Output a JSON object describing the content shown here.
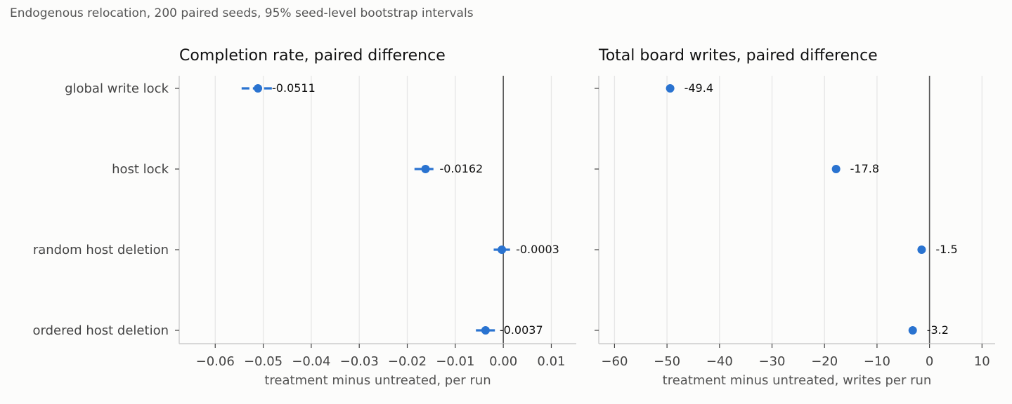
{
  "caption": "Endogenous relocation, 200 paired seeds, 95% seed-level bootstrap intervals",
  "colors": {
    "marker": "#2a73d0",
    "grid": "#e6e6e6",
    "zero_line": "#555555",
    "axis": "#cccccc",
    "text": "#444444"
  },
  "chart_data": [
    {
      "type": "scatter",
      "title": "Completion rate, paired difference",
      "xlabel": "treatment minus untreated, per run",
      "ylabel": "",
      "categories": [
        "global write lock",
        "host lock",
        "random host deletion",
        "ordered host deletion"
      ],
      "values": [
        -0.0511,
        -0.0162,
        -0.0003,
        -0.0037
      ],
      "value_labels": [
        "-0.0511",
        "-0.0162",
        "-0.0003",
        "-0.0037"
      ],
      "ci_low": [
        -0.0545,
        -0.0185,
        -0.002,
        -0.0057
      ],
      "ci_high": [
        -0.0477,
        -0.0139,
        0.0014,
        -0.0017
      ],
      "xlim": [
        -0.0675,
        0.0152
      ],
      "xticks": [
        -0.06,
        -0.05,
        -0.04,
        -0.03,
        -0.02,
        -0.01,
        0.0,
        0.01
      ],
      "xtick_labels": [
        "−0.06",
        "−0.05",
        "−0.04",
        "−0.03",
        "−0.02",
        "−0.01",
        "0.00",
        "0.01"
      ],
      "zero_line": 0,
      "grid": "vertical"
    },
    {
      "type": "scatter",
      "title": "Total board writes, paired difference",
      "xlabel": "treatment minus untreated, writes per run",
      "ylabel": "",
      "categories": [
        "global write lock",
        "host lock",
        "random host deletion",
        "ordered host deletion"
      ],
      "values": [
        -49.4,
        -17.8,
        -1.5,
        -3.2
      ],
      "value_labels": [
        "-49.4",
        "-17.8",
        "-1.5",
        "-3.2"
      ],
      "ci_low": [
        -49.4,
        -17.8,
        -1.5,
        -3.2
      ],
      "ci_high": [
        -49.4,
        -17.8,
        -1.5,
        -3.2
      ],
      "xlim": [
        -63.0,
        12.5
      ],
      "xticks": [
        -60,
        -50,
        -40,
        -30,
        -20,
        -10,
        0,
        10
      ],
      "xtick_labels": [
        "−60",
        "−50",
        "−40",
        "−30",
        "−20",
        "−10",
        "0",
        "10"
      ],
      "zero_line": 0,
      "grid": "vertical"
    }
  ]
}
